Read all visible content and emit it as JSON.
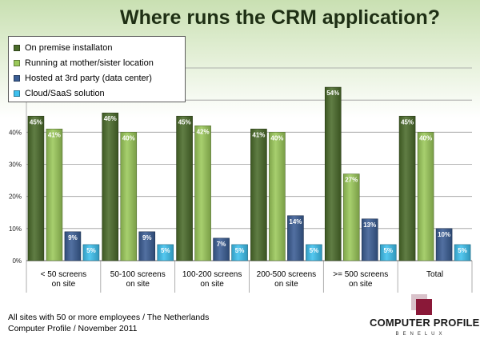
{
  "chart_data": {
    "type": "bar",
    "title": "Where runs the CRM application?",
    "categories": [
      "< 50 screens\non site",
      "50-100 screens\non site",
      "100-200 screens\non site",
      "200-500 screens\non site",
      ">= 500  screens\non site",
      "Total"
    ],
    "series": [
      {
        "name": "On premise installaton",
        "color": "#4a6b2a",
        "values": [
          45,
          46,
          45,
          41,
          54,
          45
        ]
      },
      {
        "name": "Running at mother/sister location",
        "color": "#9bc95a",
        "values": [
          41,
          40,
          42,
          40,
          27,
          40
        ]
      },
      {
        "name": "Hosted at 3rd party (data center)",
        "color": "#3a5d94",
        "values": [
          9,
          9,
          7,
          14,
          13,
          10
        ]
      },
      {
        "name": "Cloud/SaaS solution",
        "color": "#3ec0ee",
        "values": [
          5,
          5,
          5,
          5,
          5,
          5
        ]
      }
    ],
    "ylim": [
      0,
      60
    ],
    "yticks": [
      0,
      10,
      20,
      30,
      40
    ],
    "ytick_labels": [
      "0%",
      "10%",
      "20%",
      "30%",
      "40%"
    ],
    "data_label_suffix": "%",
    "grid": true,
    "legend_position": "top-left"
  },
  "footnote": {
    "line1": "All sites with 50 or more employees / The Netherlands",
    "line2": "Computer Profile / November 2011"
  },
  "logo": {
    "name": "COMPUTER PROFILE",
    "sub": "BENELUX",
    "colors": {
      "mark_primary": "#8a1838",
      "mark_light": "#d9c2ca"
    }
  }
}
